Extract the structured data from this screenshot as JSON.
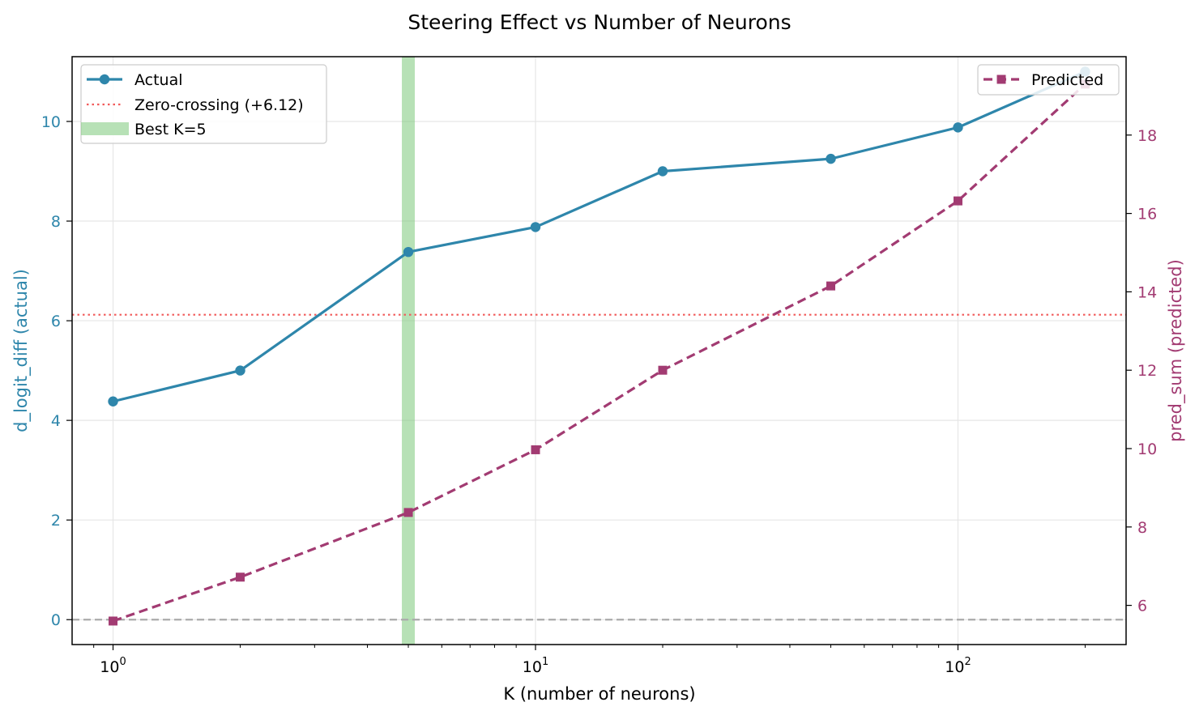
{
  "chart_data": {
    "type": "line",
    "title": "Steering Effect vs Number of Neurons",
    "xlabel": "K (number of neurons)",
    "ylabel_left": "d_logit_diff (actual)",
    "ylabel_right": "pred_sum (predicted)",
    "xscale": "log",
    "xlim": [
      0.8,
      250
    ],
    "ylim_left": [
      -0.5,
      11.3
    ],
    "ylim_right": [
      5,
      20
    ],
    "x_ticks": [
      {
        "value": 1,
        "base": "10",
        "exp": "0"
      },
      {
        "value": 10,
        "base": "10",
        "exp": "1"
      },
      {
        "value": 100,
        "base": "10",
        "exp": "2"
      }
    ],
    "y_ticks_left": [
      0,
      2,
      4,
      6,
      8,
      10
    ],
    "y_ticks_right": [
      6,
      8,
      10,
      12,
      14,
      16,
      18
    ],
    "x": [
      1,
      2,
      5,
      10,
      20,
      50,
      100,
      200
    ],
    "series": [
      {
        "name": "Actual",
        "axis": "left",
        "color": "#2e86ab",
        "style": "solid",
        "marker": "circle",
        "values": [
          4.38,
          5.0,
          7.38,
          7.88,
          9.0,
          9.25,
          9.88,
          11.0
        ]
      },
      {
        "name": "Predicted",
        "axis": "right",
        "color": "#a23b72",
        "style": "dashed",
        "marker": "square",
        "values": [
          5.6,
          6.72,
          8.37,
          9.97,
          12.0,
          14.15,
          16.32,
          19.3
        ]
      }
    ],
    "reference_lines": [
      {
        "name": "Zero-crossing (+6.12)",
        "axis": "left",
        "orientation": "horizontal",
        "value": 6.12,
        "color": "#f15b5b",
        "style": "dotted"
      },
      {
        "name": "baseline",
        "axis": "left",
        "orientation": "horizontal",
        "value": 0,
        "color": "#aaaaaa",
        "style": "dashed"
      }
    ],
    "highlight": {
      "name": "Best K=5",
      "orientation": "vertical",
      "value": 5,
      "color": "#7bc87a"
    },
    "legend_left": {
      "position": "upper-left",
      "entries": [
        "Actual",
        "Zero-crossing (+6.12)",
        "Best K=5"
      ]
    },
    "legend_right": {
      "position": "upper-right",
      "entries": [
        "Predicted"
      ]
    },
    "grid": true
  }
}
